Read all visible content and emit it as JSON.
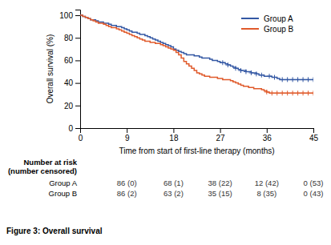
{
  "chart_data": {
    "type": "step",
    "xlabel": "Time from start of first-line therapy (months)",
    "ylabel": "Overall survival (%)",
    "caption": "Figure 3: Overall survival",
    "xlim": [
      0,
      45
    ],
    "ylim": [
      0,
      105
    ],
    "xticks": [
      0,
      9,
      18,
      27,
      36,
      45
    ],
    "yticks": [
      0,
      20,
      40,
      60,
      80,
      100
    ],
    "legend": "upper right",
    "series": [
      {
        "name": "Group A",
        "color": "#3458a4",
        "marker": "plus",
        "x": [
          0,
          0.5,
          1,
          1.5,
          2,
          2.5,
          3,
          3.5,
          4,
          4.5,
          5,
          5.5,
          6,
          6.5,
          7,
          7.5,
          8,
          8.5,
          9,
          9.5,
          10,
          10.5,
          11,
          11.5,
          12,
          12.5,
          13,
          13.5,
          14,
          14.5,
          15,
          15.5,
          16,
          16.5,
          17,
          17.5,
          18,
          18.5,
          19,
          19.5,
          20,
          20.5,
          21,
          21.5,
          22,
          22.5,
          23,
          23.5,
          24,
          24.5,
          25,
          25.5,
          26,
          26.5,
          27,
          27.5,
          28,
          28.5,
          29,
          29.5,
          30,
          30.5,
          31,
          31.5,
          32,
          32.5,
          33,
          33.5,
          34,
          34.5,
          35,
          35.5,
          36,
          36.5,
          37,
          37.5,
          38,
          38.5,
          39,
          39.5,
          40,
          40.5,
          41,
          41.5,
          42,
          42.5,
          43,
          43.5,
          44,
          44.5,
          45
        ],
        "values": [
          100,
          99,
          98,
          97,
          96,
          96,
          95,
          94,
          94,
          93,
          93,
          92,
          91,
          91,
          90,
          90,
          89,
          88,
          87,
          86,
          85,
          85,
          84,
          83,
          83,
          82,
          81,
          80,
          79,
          78,
          77,
          76,
          75,
          74,
          73,
          72,
          70,
          69,
          68,
          67,
          66,
          65,
          65,
          65,
          64,
          64,
          63,
          62,
          62,
          62,
          61,
          60,
          60,
          59,
          58,
          58,
          57,
          56,
          55,
          54,
          53,
          52,
          51,
          51,
          50,
          50,
          49,
          49,
          48,
          47,
          47,
          46,
          46,
          46,
          45,
          45,
          44,
          43,
          43,
          43,
          43,
          43,
          43,
          43,
          43,
          43,
          43,
          43,
          43,
          43,
          43
        ],
        "censored_x": [
          27.5,
          28.5,
          30,
          31,
          32,
          33,
          34,
          35,
          36.5,
          37.5,
          39,
          40,
          41,
          42,
          43,
          44,
          45
        ],
        "censored_y": [
          58,
          56,
          53,
          51,
          50,
          49,
          48,
          47,
          46,
          45,
          43,
          43,
          43,
          43,
          43,
          43,
          43
        ]
      },
      {
        "name": "Group B",
        "color": "#e05a2b",
        "marker": "plus",
        "x": [
          0,
          0.5,
          1,
          1.5,
          2,
          2.5,
          3,
          3.5,
          4,
          4.5,
          5,
          5.5,
          6,
          6.5,
          7,
          7.5,
          8,
          8.5,
          9,
          9.5,
          10,
          10.5,
          11,
          11.5,
          12,
          12.5,
          13,
          13.5,
          14,
          14.5,
          15,
          15.5,
          16,
          16.5,
          17,
          17.5,
          18,
          18.5,
          19,
          19.5,
          20,
          20.5,
          21,
          21.5,
          22,
          22.5,
          23,
          23.5,
          24,
          24.5,
          25,
          25.5,
          26,
          26.5,
          27,
          27.5,
          28,
          28.5,
          29,
          29.5,
          30,
          30.5,
          31,
          31.5,
          32,
          32.5,
          33,
          33.5,
          34,
          34.5,
          35,
          35.5,
          36,
          36.5,
          37,
          37.5,
          38,
          38.5,
          39,
          39.5,
          40,
          40.5,
          41,
          41.5,
          42,
          42.5,
          43,
          43.5,
          44,
          44.5,
          45
        ],
        "values": [
          100,
          99,
          98,
          97,
          96,
          95,
          94,
          93,
          93,
          92,
          91,
          90,
          89,
          89,
          88,
          87,
          86,
          85,
          84,
          83,
          82,
          81,
          80,
          79,
          78,
          77,
          77,
          76,
          76,
          75,
          75,
          74,
          73,
          72,
          71,
          70,
          69,
          67,
          65,
          62,
          59,
          57,
          55,
          53,
          51,
          49,
          48,
          47,
          46,
          46,
          45,
          45,
          45,
          44,
          44,
          43,
          43,
          43,
          42,
          41,
          40,
          39,
          38,
          37,
          37,
          36,
          36,
          35,
          35,
          35,
          34,
          33,
          32,
          31,
          31,
          31,
          31,
          31,
          31,
          31,
          31,
          31,
          31,
          31,
          31,
          31,
          31,
          31,
          31,
          31,
          31
        ],
        "censored_x": [
          36,
          37,
          38,
          39,
          40,
          41,
          42,
          43,
          44,
          45
        ],
        "censored_y": [
          32,
          31,
          31,
          31,
          31,
          31,
          31,
          31,
          31,
          31
        ]
      }
    ],
    "risk_table": {
      "header": "Number at risk",
      "subheader": "(number censored)",
      "timepoints": [
        9,
        18,
        27,
        36,
        45
      ],
      "rows": [
        [
          "86 (0)",
          "68 (1)",
          "38 (22)",
          "12 (42)",
          "0 (53)"
        ],
        [
          "86 (2)",
          "63 (2)",
          "35 (15)",
          "8 (35)",
          "0 (43)"
        ]
      ]
    }
  }
}
